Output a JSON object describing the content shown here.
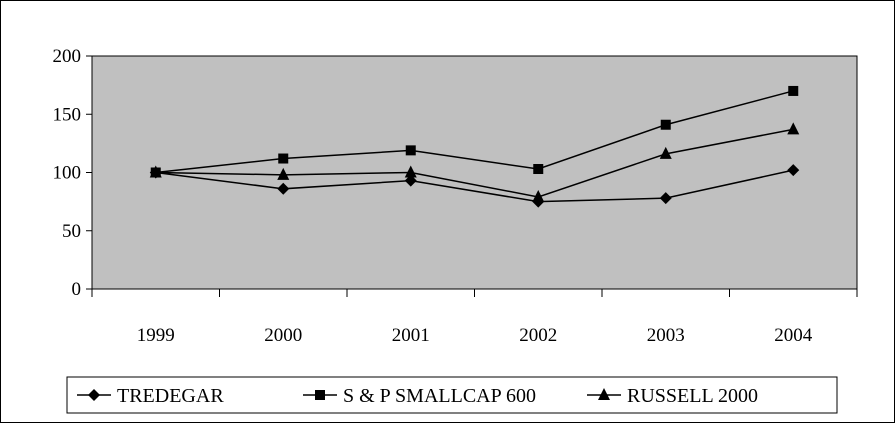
{
  "chart_data": {
    "type": "line",
    "title": "",
    "xlabel": "",
    "ylabel": "",
    "categories": [
      "1999",
      "2000",
      "2001",
      "2002",
      "2003",
      "2004"
    ],
    "ylim": [
      0,
      200
    ],
    "yticks": [
      0,
      50,
      100,
      150,
      200
    ],
    "grid": false,
    "plot_background": "#c0c0c0",
    "legend_position": "bottom",
    "series": [
      {
        "name": "TREDEGAR",
        "marker": "diamond",
        "color": "#000000",
        "values": [
          100,
          86,
          93,
          75,
          78,
          102
        ]
      },
      {
        "name": "S & P SMALLCAP 600",
        "marker": "square",
        "color": "#000000",
        "values": [
          100,
          112,
          119,
          103,
          141,
          170
        ]
      },
      {
        "name": "RUSSELL 2000",
        "marker": "triangle",
        "color": "#000000",
        "values": [
          100,
          98,
          100,
          79,
          116,
          137
        ]
      }
    ]
  }
}
